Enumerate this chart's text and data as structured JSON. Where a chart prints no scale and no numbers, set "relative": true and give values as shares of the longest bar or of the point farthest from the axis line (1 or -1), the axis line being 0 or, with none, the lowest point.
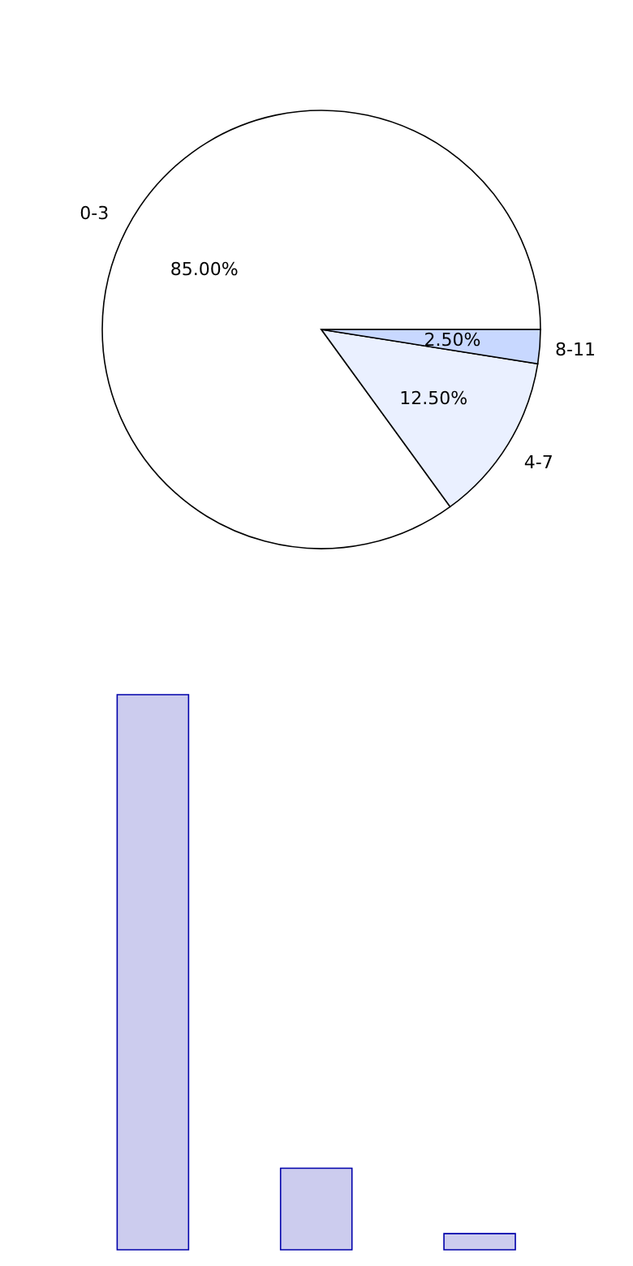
{
  "chart_data": [
    {
      "type": "pie",
      "categories": [
        "0-3",
        "4-7",
        "8-11"
      ],
      "values": [
        85,
        12.5,
        2.5
      ],
      "colors": [
        "#ffffff",
        "#eaf0ff",
        "#c8d8ff"
      ],
      "value_labels": [
        "85.00%",
        "12.50%",
        "2.50%"
      ]
    },
    {
      "type": "bar",
      "relative": true,
      "categories": [
        null,
        null,
        null
      ],
      "values": [
        1,
        0.147,
        0.029
      ],
      "color": "#ccccee"
    }
  ]
}
